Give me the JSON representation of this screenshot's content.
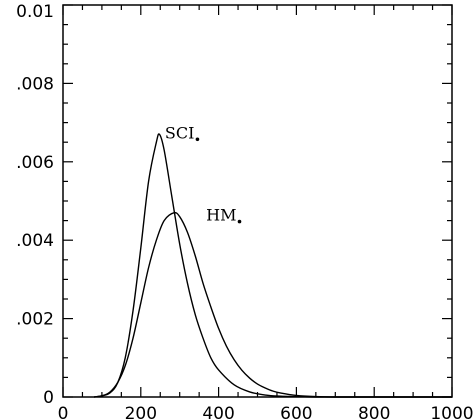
{
  "chart_data": {
    "type": "line",
    "title": "",
    "xlabel": "",
    "ylabel": "",
    "xlim": [
      0,
      1000
    ],
    "ylim": [
      0,
      0.01
    ],
    "x_ticks": [
      0,
      200,
      400,
      600,
      800,
      1000
    ],
    "x_tick_labels": [
      "0",
      "200",
      "400",
      "600",
      "800",
      "1000"
    ],
    "y_ticks": [
      0,
      0.002,
      0.004,
      0.006,
      0.008,
      0.01
    ],
    "y_tick_labels": [
      "0",
      ".002",
      ".004",
      ".006",
      ".008",
      "0.01"
    ],
    "grid": false,
    "series": [
      {
        "name": "SCI",
        "x": [
          80,
          100,
          120,
          140,
          160,
          180,
          200,
          220,
          240,
          248,
          260,
          280,
          300,
          320,
          340,
          360,
          380,
          400,
          440,
          480,
          520,
          560,
          600,
          650,
          700,
          800,
          900,
          1000
        ],
        "y": [
          0.0,
          3e-05,
          0.0001,
          0.00035,
          0.001,
          0.0022,
          0.0038,
          0.0055,
          0.0065,
          0.0067,
          0.0063,
          0.0051,
          0.0039,
          0.0029,
          0.0021,
          0.0015,
          0.001,
          0.00069,
          0.00031,
          0.00013,
          5e-05,
          2e-05,
          1e-05,
          0.0,
          0.0,
          0.0,
          0.0,
          0.0
        ]
      },
      {
        "name": "HM",
        "x": [
          80,
          100,
          120,
          140,
          160,
          180,
          200,
          220,
          240,
          260,
          285,
          300,
          320,
          340,
          360,
          380,
          400,
          420,
          440,
          460,
          480,
          500,
          520,
          540,
          560,
          600,
          650,
          700,
          800,
          900,
          1000
        ],
        "y": [
          0.0,
          3e-05,
          0.00012,
          0.00036,
          0.0008,
          0.0015,
          0.0024,
          0.0033,
          0.004,
          0.0045,
          0.0047,
          0.0046,
          0.0042,
          0.0036,
          0.0029,
          0.0023,
          0.00175,
          0.0013,
          0.00095,
          0.00068,
          0.00048,
          0.00033,
          0.00023,
          0.00015,
          0.0001,
          4e-05,
          1e-05,
          0.0,
          0.0,
          0.0,
          0.0
        ]
      }
    ],
    "annotations": [
      {
        "text": "SCI",
        "x": 262,
        "y": 0.0066
      },
      {
        "text": "HM",
        "x": 368,
        "y": 0.0045
      }
    ]
  }
}
